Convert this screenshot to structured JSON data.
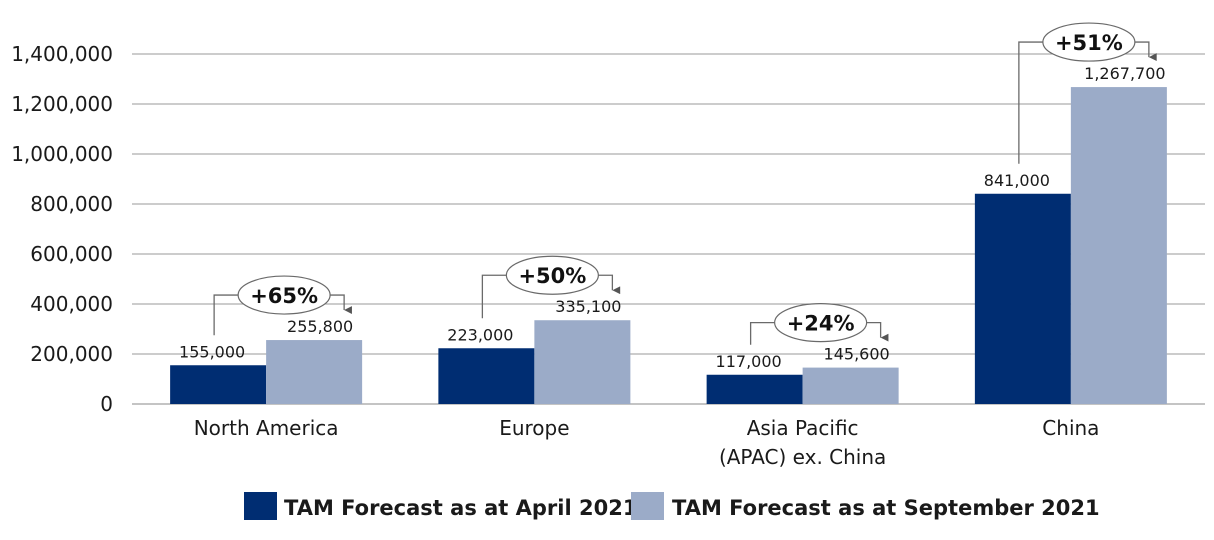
{
  "chart_data": {
    "type": "bar",
    "title": "",
    "xlabel": "",
    "ylabel": "",
    "ylim": [
      0,
      1400000
    ],
    "yticks": [
      0,
      200000,
      400000,
      600000,
      800000,
      1000000,
      1200000,
      1400000
    ],
    "ytick_labels": [
      "0",
      "200,000",
      "400,000",
      "600,000",
      "800,000",
      "1,000,000",
      "1,200,000",
      "1,400,000"
    ],
    "grid": true,
    "legend_position": "bottom",
    "categories": [
      [
        "North America"
      ],
      [
        "Europe"
      ],
      [
        "Asia Pacific",
        "(APAC) ex. China"
      ],
      [
        "China"
      ]
    ],
    "series": [
      {
        "name": "TAM Forecast as at April 2021",
        "color": "#002D72",
        "values": [
          155000,
          223000,
          117000,
          841000
        ],
        "labels": [
          "155,000",
          "223,000",
          "117,000",
          "841,000"
        ]
      },
      {
        "name": "TAM Forecast as at September 2021",
        "color": "#9BABC8",
        "values": [
          255800,
          335100,
          145600,
          1267700
        ],
        "labels": [
          "255,800",
          "335,100",
          "145,600",
          "1,267,700"
        ]
      }
    ],
    "annotations": [
      {
        "category": 0,
        "text": "+65%"
      },
      {
        "category": 1,
        "text": "+50%"
      },
      {
        "category": 2,
        "text": "+24%"
      },
      {
        "category": 3,
        "text": "+51%"
      }
    ]
  }
}
